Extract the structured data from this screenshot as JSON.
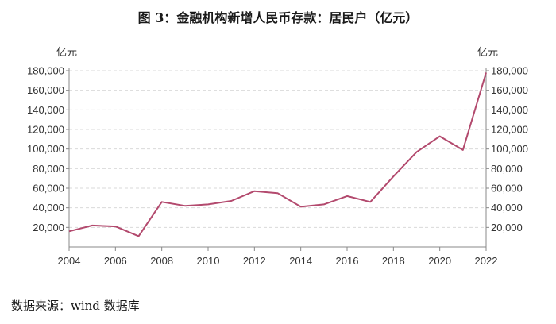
{
  "chart_data": {
    "type": "line",
    "title": "图 3：金融机构新增人民币存款：居民户（亿元）",
    "ylabel_left": "亿元",
    "ylabel_right": "亿元",
    "xlim": [
      2004,
      2022
    ],
    "ylim": [
      0,
      180000
    ],
    "x_ticks": [
      2004,
      2006,
      2008,
      2010,
      2012,
      2014,
      2016,
      2018,
      2020,
      2022
    ],
    "x_tick_labels": [
      "2004",
      "2006",
      "2008",
      "2010",
      "2012",
      "2014",
      "2016",
      "2018",
      "2020",
      "2022"
    ],
    "y_ticks": [
      20000,
      40000,
      60000,
      80000,
      100000,
      120000,
      140000,
      160000,
      180000
    ],
    "y_tick_labels": [
      "20,000",
      "40,000",
      "60,000",
      "80,000",
      "100,000",
      "120,000",
      "140,000",
      "160,000",
      "180,000"
    ],
    "grid": true,
    "line_color": "#b34a6e",
    "series": [
      {
        "name": "金融机构新增人民币存款：居民户",
        "x": [
          2004,
          2005,
          2006,
          2007,
          2008,
          2009,
          2010,
          2011,
          2012,
          2013,
          2014,
          2015,
          2016,
          2017,
          2018,
          2019,
          2020,
          2021,
          2022
        ],
        "values": [
          16000,
          22000,
          21000,
          11000,
          46000,
          42000,
          43500,
          47000,
          57000,
          55000,
          41000,
          43500,
          52000,
          46000,
          72000,
          97000,
          113000,
          99000,
          178000
        ]
      }
    ]
  },
  "source_text": "数据来源：wind 数据库"
}
